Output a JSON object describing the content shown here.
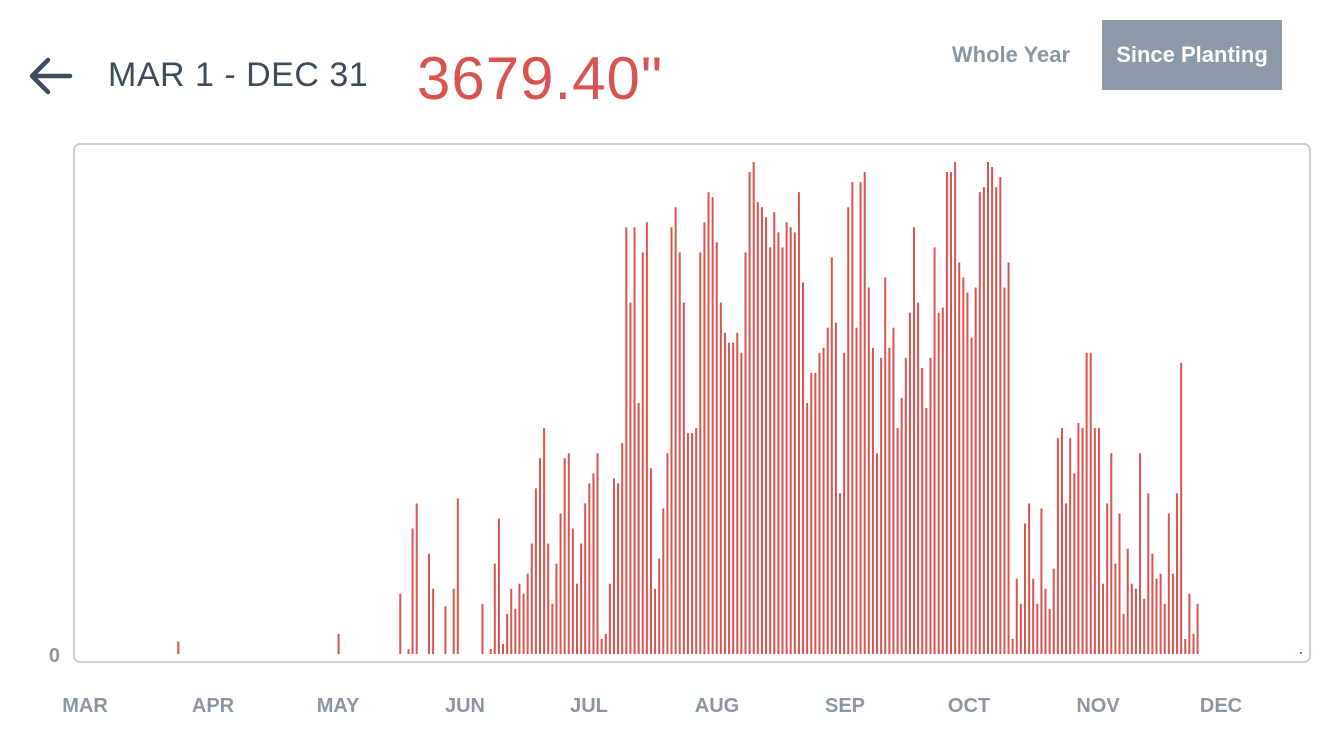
{
  "header": {
    "back_icon": "arrow-left-icon",
    "date_range": "MAR 1 - DEC 31",
    "total": "3679.40\"",
    "toggle": {
      "options": [
        "Whole Year",
        "Since Planting"
      ],
      "selected": "Since Planting"
    }
  },
  "colors": {
    "accent": "#d9534f",
    "title": "#3d4b5c",
    "axis_label": "#8a96a3",
    "selected_bg": "#8c99a6",
    "plot_border": "#c8cdd2"
  },
  "chart_data": {
    "type": "bar",
    "ymin_label": "0",
    "x_ticks": [
      "MAR",
      "APR",
      "MAY",
      "JUN",
      "JUL",
      "AUG",
      "SEP",
      "OCT",
      "NOV",
      "DEC"
    ],
    "ylim": [
      0,
      100
    ],
    "grid": false,
    "legend": "none",
    "values": [
      0,
      0,
      0,
      0,
      0,
      0,
      0,
      0,
      0,
      0,
      0,
      0,
      2.5,
      0,
      0,
      0,
      0,
      0,
      0,
      0,
      0,
      0,
      0,
      0,
      0,
      0,
      0,
      0,
      0,
      0,
      0,
      0,
      0,
      0,
      0,
      0,
      0,
      0,
      0,
      0,
      0,
      0,
      0,
      0,
      0,
      0,
      0,
      0,
      0,
      0,
      0,
      4,
      0,
      0,
      0,
      0,
      0,
      0,
      0,
      0,
      0,
      0,
      0,
      0,
      0,
      0,
      12,
      0,
      1,
      25,
      30,
      0,
      0,
      20,
      13,
      0,
      0,
      9.5,
      0,
      13,
      31,
      0,
      0,
      0,
      0,
      0,
      10,
      0,
      1,
      18,
      27,
      2,
      8,
      13,
      9,
      14,
      12,
      16,
      22,
      33,
      39,
      45,
      22,
      10,
      18,
      28,
      39,
      40,
      25,
      14,
      22,
      30,
      34,
      36,
      40,
      3,
      4,
      14,
      35,
      34,
      42,
      85,
      70,
      85,
      50,
      80,
      86,
      37,
      13,
      19,
      29,
      40,
      85,
      89,
      80,
      70,
      44,
      44,
      45,
      80,
      86,
      92,
      91,
      82,
      70,
      64,
      62,
      62,
      64,
      60,
      80,
      96,
      98,
      90,
      89,
      87,
      81,
      88,
      84,
      81,
      86,
      85,
      84,
      92,
      74,
      50,
      56,
      56,
      60,
      61,
      65,
      79,
      66,
      32,
      60,
      89,
      94,
      65,
      94,
      96,
      73,
      61,
      40,
      59,
      75,
      61,
      65,
      45,
      51,
      59,
      68,
      85,
      70,
      57,
      49,
      59,
      81,
      68,
      69,
      96,
      96,
      98,
      78,
      75,
      72,
      63,
      73,
      92,
      93,
      98,
      97,
      93,
      95,
      73,
      78,
      3,
      15,
      10,
      26,
      30,
      15,
      10,
      29,
      13,
      9,
      17,
      43,
      45,
      30,
      43,
      36,
      46,
      45,
      60,
      60,
      45,
      45,
      14,
      30,
      40,
      18,
      28,
      8,
      21,
      14,
      13,
      40,
      11,
      32,
      20,
      15,
      16,
      10,
      28,
      16,
      32,
      58,
      3,
      12,
      4,
      10
    ],
    "footer_dot": 0.5
  }
}
